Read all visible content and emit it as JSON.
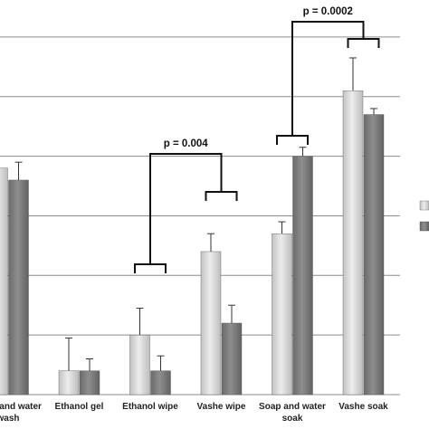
{
  "chart_data": {
    "type": "bar",
    "categories": [
      [
        "Soap and water",
        "wash"
      ],
      [
        "Ethanol gel"
      ],
      [
        "Ethanol wipe"
      ],
      [
        "Vashe wipe"
      ],
      [
        "Soap and water",
        "soak"
      ],
      [
        "Vashe soak"
      ]
    ],
    "series": [
      {
        "values": [
          3.8,
          0.4,
          1.0,
          2.4,
          2.7,
          5.1
        ],
        "errors": [
          0.0,
          0.55,
          0.45,
          0.3,
          0.2,
          0.55
        ],
        "color": "#d4d4d4"
      },
      {
        "values": [
          3.6,
          0.4,
          0.4,
          1.2,
          4.0,
          4.7
        ],
        "errors": [
          0.3,
          0.2,
          0.25,
          0.3,
          0.15,
          0.1
        ],
        "color": "#7a7a7a"
      }
    ],
    "ylim": [
      0,
      6.5
    ],
    "grid": true,
    "legend_position": "right",
    "annotations": [
      {
        "text": "p = 0.004",
        "between": [
          2,
          3
        ]
      },
      {
        "text": "p = 0.0002",
        "between": [
          4,
          5
        ]
      }
    ]
  }
}
